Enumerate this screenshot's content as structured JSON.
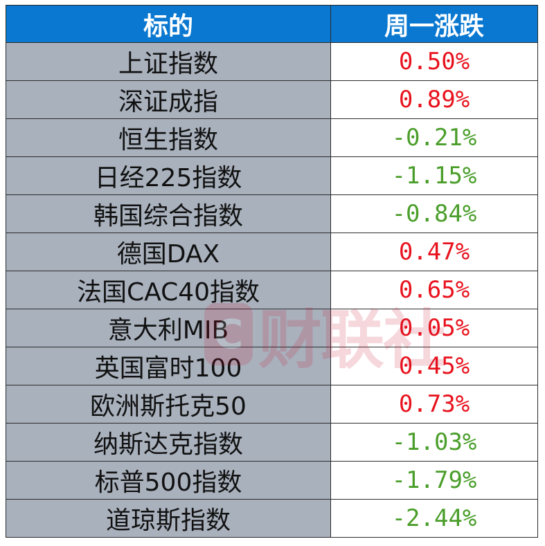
{
  "header": {
    "col_name": "标的",
    "col_change": "周一涨跌"
  },
  "colors": {
    "header_bg": "#0a78d0",
    "name_bg": "#a9b1bd",
    "up": "#e8121d",
    "down": "#4a9e2a"
  },
  "rows": [
    {
      "name": "上证指数",
      "change": "0.50%",
      "direction": "up"
    },
    {
      "name": "深证成指",
      "change": "0.89%",
      "direction": "up"
    },
    {
      "name": "恒生指数",
      "change": "-0.21%",
      "direction": "down"
    },
    {
      "name": "日经225指数",
      "change": "-1.15%",
      "direction": "down"
    },
    {
      "name": "韩国综合指数",
      "change": "-0.84%",
      "direction": "down"
    },
    {
      "name": "德国DAX",
      "change": "0.47%",
      "direction": "up"
    },
    {
      "name": "法国CAC40指数",
      "change": "0.65%",
      "direction": "up"
    },
    {
      "name": "意大利MIB",
      "change": "0.05%",
      "direction": "up"
    },
    {
      "name": "英国富时100",
      "change": "0.45%",
      "direction": "up"
    },
    {
      "name": "欧洲斯托克50",
      "change": "0.73%",
      "direction": "up"
    },
    {
      "name": "纳斯达克指数",
      "change": "-1.03%",
      "direction": "down"
    },
    {
      "name": "标普500指数",
      "change": "-1.79%",
      "direction": "down"
    },
    {
      "name": "道琼斯指数",
      "change": "-2.44%",
      "direction": "down"
    }
  ],
  "watermark": {
    "logo_glyph": "C",
    "text": "财联社"
  }
}
